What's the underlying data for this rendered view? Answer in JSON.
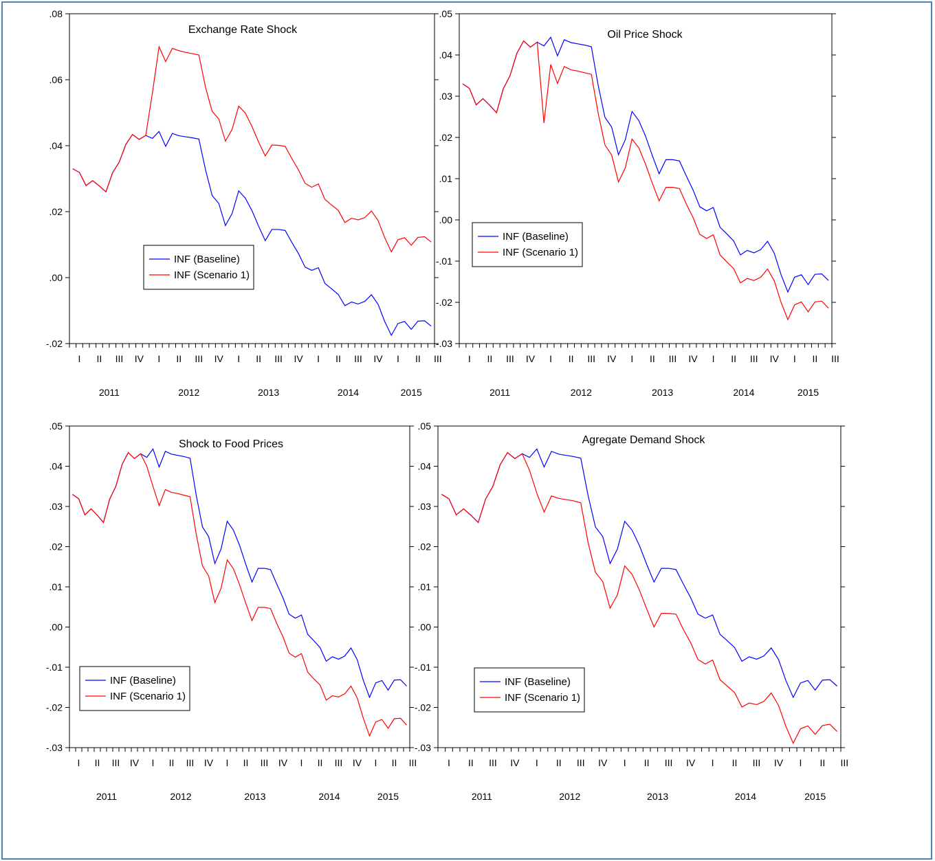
{
  "colors": {
    "baseline": "#0000ff",
    "scenario": "#ff0000",
    "frame": "#4f81bd"
  },
  "charts_layout_order": [
    "Exchange Rate Shock",
    "Oil Price Shock",
    "Shock to Food Prices",
    "Agregate Demand Shock"
  ],
  "chart_data": [
    {
      "type": "line",
      "title": "Exchange Rate Shock",
      "ylim": [
        -0.02,
        0.08
      ],
      "yticks": [
        -0.02,
        0.0,
        0.02,
        0.04,
        0.06,
        0.08
      ],
      "ytick_labels": [
        "-.02",
        ".00",
        ".02",
        ".04",
        ".06",
        ".08"
      ],
      "quarter_labels": [
        "I",
        "II",
        "III",
        "IV",
        "I",
        "II",
        "III",
        "IV",
        "I",
        "II",
        "III",
        "IV",
        "I",
        "II",
        "III",
        "IV",
        "I",
        "II",
        "III"
      ],
      "year_labels": [
        "2011",
        "2012",
        "2013",
        "2014",
        "2015"
      ],
      "legend": {
        "position": "lower-left",
        "entries": [
          "INF (Baseline)",
          "INF (Scenario 1)"
        ]
      },
      "series": [
        {
          "name": "INF (Baseline)",
          "color": "#0000ff",
          "values": [
            0.033,
            0.0319,
            0.0279,
            0.0294,
            0.0278,
            0.026,
            0.0318,
            0.035,
            0.0404,
            0.0434,
            0.0419,
            0.0431,
            0.0422,
            0.0443,
            0.0398,
            0.0437,
            0.043,
            0.0427,
            0.0424,
            0.042,
            0.0327,
            0.0249,
            0.0225,
            0.0158,
            0.0194,
            0.0263,
            0.0241,
            0.0203,
            0.0156,
            0.0112,
            0.0146,
            0.0146,
            0.0143,
            0.0107,
            0.0073,
            0.0032,
            0.0022,
            0.003,
            -0.0018,
            -0.0034,
            -0.0051,
            -0.0085,
            -0.0074,
            -0.008,
            -0.0072,
            -0.0052,
            -0.0081,
            -0.0133,
            -0.0175,
            -0.0139,
            -0.0133,
            -0.0157,
            -0.0132,
            -0.0131,
            -0.0147
          ]
        },
        {
          "name": "INF (Scenario 1)",
          "color": "#ff0000",
          "values": [
            0.033,
            0.0319,
            0.0279,
            0.0294,
            0.0278,
            0.026,
            0.0318,
            0.035,
            0.0404,
            0.0434,
            0.0419,
            0.0431,
            0.056,
            0.07,
            0.0655,
            0.0695,
            0.0688,
            0.0683,
            0.0679,
            0.0675,
            0.0577,
            0.0504,
            0.0481,
            0.0414,
            0.0449,
            0.052,
            0.0499,
            0.0458,
            0.0411,
            0.0369,
            0.0402,
            0.0401,
            0.0398,
            0.0361,
            0.0327,
            0.0286,
            0.0274,
            0.0284,
            0.0237,
            0.022,
            0.0204,
            0.0167,
            0.018,
            0.0175,
            0.0182,
            0.0202,
            0.0173,
            0.0121,
            0.0078,
            0.0115,
            0.0121,
            0.0098,
            0.0122,
            0.0124,
            0.0108
          ]
        }
      ]
    },
    {
      "type": "line",
      "title": "Oil Price Shock",
      "ylim": [
        -0.03,
        0.05
      ],
      "yticks": [
        -0.03,
        -0.02,
        -0.01,
        0.0,
        0.01,
        0.02,
        0.03,
        0.04,
        0.05
      ],
      "ytick_labels": [
        "-.03",
        "-.02",
        "-.01",
        ".00",
        ".01",
        ".02",
        ".03",
        ".04",
        ".05"
      ],
      "quarter_labels": [
        "I",
        "II",
        "III",
        "IV",
        "I",
        "II",
        "III",
        "IV",
        "I",
        "II",
        "III",
        "IV",
        "I",
        "II",
        "III",
        "IV",
        "I",
        "II",
        "III"
      ],
      "year_labels": [
        "2011",
        "2012",
        "2013",
        "2014",
        "2015"
      ],
      "legend": {
        "position": "lower-left",
        "entries": [
          "INF (Baseline)",
          "INF (Scenario 1)"
        ]
      },
      "series": [
        {
          "name": "INF (Baseline)",
          "color": "#0000ff",
          "values": [
            0.033,
            0.0319,
            0.0279,
            0.0294,
            0.0278,
            0.026,
            0.0318,
            0.035,
            0.0404,
            0.0434,
            0.0419,
            0.0431,
            0.0422,
            0.0443,
            0.0398,
            0.0437,
            0.043,
            0.0427,
            0.0424,
            0.042,
            0.0327,
            0.0249,
            0.0225,
            0.0158,
            0.0194,
            0.0263,
            0.0241,
            0.0203,
            0.0156,
            0.0112,
            0.0146,
            0.0146,
            0.0143,
            0.0107,
            0.0073,
            0.0032,
            0.0022,
            0.003,
            -0.0018,
            -0.0034,
            -0.0051,
            -0.0085,
            -0.0074,
            -0.008,
            -0.0072,
            -0.0052,
            -0.0081,
            -0.0133,
            -0.0175,
            -0.0139,
            -0.0133,
            -0.0157,
            -0.0132,
            -0.0131,
            -0.0147
          ]
        },
        {
          "name": "INF (Scenario 1)",
          "color": "#ff0000",
          "values": [
            0.033,
            0.0319,
            0.0279,
            0.0294,
            0.0278,
            0.026,
            0.0318,
            0.035,
            0.0404,
            0.0434,
            0.0419,
            0.0431,
            0.0235,
            0.0377,
            0.0331,
            0.0372,
            0.0364,
            0.0361,
            0.0357,
            0.0353,
            0.0259,
            0.0182,
            0.0157,
            0.0092,
            0.0126,
            0.0196,
            0.0175,
            0.0135,
            0.0089,
            0.0046,
            0.0079,
            0.0079,
            0.0076,
            0.0039,
            0.0006,
            -0.0035,
            -0.0045,
            -0.0036,
            -0.0085,
            -0.0102,
            -0.0118,
            -0.0153,
            -0.0142,
            -0.0147,
            -0.0139,
            -0.0119,
            -0.0148,
            -0.02,
            -0.0242,
            -0.0206,
            -0.0199,
            -0.0223,
            -0.0199,
            -0.0197,
            -0.0214
          ]
        }
      ]
    },
    {
      "type": "line",
      "title": "Shock to Food Prices",
      "ylim": [
        -0.03,
        0.05
      ],
      "yticks": [
        -0.03,
        -0.02,
        -0.01,
        0.0,
        0.01,
        0.02,
        0.03,
        0.04,
        0.05
      ],
      "ytick_labels": [
        "-.03",
        "-.02",
        "-.01",
        ".00",
        ".01",
        ".02",
        ".03",
        ".04",
        ".05"
      ],
      "quarter_labels": [
        "I",
        "II",
        "III",
        "IV",
        "I",
        "II",
        "III",
        "IV",
        "I",
        "II",
        "III",
        "IV",
        "I",
        "II",
        "III",
        "IV",
        "I",
        "II",
        "III"
      ],
      "year_labels": [
        "2011",
        "2012",
        "2013",
        "2014",
        "2015"
      ],
      "legend": {
        "position": "lower-left",
        "entries": [
          "INF (Baseline)",
          "INF (Scenario 1)"
        ]
      },
      "series": [
        {
          "name": "INF (Baseline)",
          "color": "#0000ff",
          "values": [
            0.033,
            0.0319,
            0.0279,
            0.0294,
            0.0278,
            0.026,
            0.0318,
            0.035,
            0.0404,
            0.0434,
            0.0419,
            0.0431,
            0.0422,
            0.0443,
            0.0398,
            0.0437,
            0.043,
            0.0427,
            0.0424,
            0.042,
            0.0327,
            0.0249,
            0.0225,
            0.0158,
            0.0194,
            0.0263,
            0.0241,
            0.0203,
            0.0156,
            0.0112,
            0.0146,
            0.0146,
            0.0143,
            0.0107,
            0.0073,
            0.0032,
            0.0022,
            0.003,
            -0.0018,
            -0.0034,
            -0.0051,
            -0.0085,
            -0.0074,
            -0.008,
            -0.0072,
            -0.0052,
            -0.0081,
            -0.0133,
            -0.0175,
            -0.0139,
            -0.0133,
            -0.0157,
            -0.0132,
            -0.0131,
            -0.0147
          ]
        },
        {
          "name": "INF (Scenario 1)",
          "color": "#ff0000",
          "values": [
            0.033,
            0.0319,
            0.0279,
            0.0294,
            0.0278,
            0.026,
            0.0318,
            0.035,
            0.0404,
            0.0434,
            0.0419,
            0.0431,
            0.04,
            0.035,
            0.0302,
            0.0342,
            0.0335,
            0.0332,
            0.0328,
            0.0324,
            0.023,
            0.0152,
            0.0127,
            0.0061,
            0.0096,
            0.0167,
            0.0145,
            0.0105,
            0.0059,
            0.0016,
            0.0049,
            0.0049,
            0.0046,
            0.0009,
            -0.0024,
            -0.0065,
            -0.0075,
            -0.0066,
            -0.0112,
            -0.0129,
            -0.0144,
            -0.0182,
            -0.0171,
            -0.0174,
            -0.0166,
            -0.0147,
            -0.0176,
            -0.0227,
            -0.0271,
            -0.0236,
            -0.023,
            -0.0252,
            -0.0228,
            -0.0227,
            -0.0244
          ]
        }
      ]
    },
    {
      "type": "line",
      "title": "Agregate Demand Shock",
      "ylim": [
        -0.03,
        0.05
      ],
      "yticks": [
        -0.03,
        -0.02,
        -0.01,
        0.0,
        0.01,
        0.02,
        0.03,
        0.04,
        0.05
      ],
      "ytick_labels": [
        "-.03",
        "-.02",
        "-.01",
        ".00",
        ".01",
        ".02",
        ".03",
        ".04",
        ".05"
      ],
      "quarter_labels": [
        "I",
        "II",
        "III",
        "IV",
        "I",
        "II",
        "III",
        "IV",
        "I",
        "II",
        "III",
        "IV",
        "I",
        "II",
        "III",
        "IV",
        "I",
        "II",
        "III"
      ],
      "year_labels": [
        "2011",
        "2012",
        "2013",
        "2014",
        "2015"
      ],
      "legend": {
        "position": "lower-left",
        "entries": [
          "INF (Baseline)",
          "INF (Scenario 1)"
        ]
      },
      "series": [
        {
          "name": "INF (Baseline)",
          "color": "#0000ff",
          "values": [
            0.033,
            0.0319,
            0.0279,
            0.0294,
            0.0278,
            0.026,
            0.0318,
            0.035,
            0.0404,
            0.0434,
            0.0419,
            0.0431,
            0.0422,
            0.0443,
            0.0398,
            0.0437,
            0.043,
            0.0427,
            0.0424,
            0.042,
            0.0327,
            0.0249,
            0.0225,
            0.0158,
            0.0194,
            0.0263,
            0.0241,
            0.0203,
            0.0156,
            0.0112,
            0.0146,
            0.0146,
            0.0143,
            0.0107,
            0.0073,
            0.0032,
            0.0022,
            0.003,
            -0.0018,
            -0.0034,
            -0.0051,
            -0.0085,
            -0.0074,
            -0.008,
            -0.0072,
            -0.0052,
            -0.0081,
            -0.0133,
            -0.0175,
            -0.0139,
            -0.0133,
            -0.0157,
            -0.0132,
            -0.0131,
            -0.0147
          ]
        },
        {
          "name": "INF (Scenario 1)",
          "color": "#ff0000",
          "values": [
            0.033,
            0.0319,
            0.0279,
            0.0294,
            0.0278,
            0.026,
            0.0318,
            0.035,
            0.0404,
            0.0434,
            0.0419,
            0.0431,
            0.039,
            0.0333,
            0.0286,
            0.0326,
            0.032,
            0.0317,
            0.0314,
            0.0309,
            0.021,
            0.0136,
            0.0113,
            0.0047,
            0.008,
            0.0152,
            0.0131,
            0.0092,
            0.0045,
            0.0,
            0.0034,
            0.0034,
            0.0032,
            -0.0006,
            -0.0039,
            -0.0081,
            -0.0092,
            -0.0082,
            -0.0131,
            -0.0147,
            -0.0163,
            -0.0199,
            -0.0189,
            -0.0193,
            -0.0185,
            -0.0164,
            -0.0195,
            -0.0247,
            -0.0289,
            -0.0253,
            -0.0246,
            -0.0267,
            -0.0245,
            -0.0242,
            -0.026
          ]
        }
      ]
    }
  ]
}
